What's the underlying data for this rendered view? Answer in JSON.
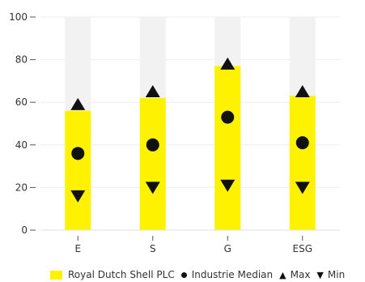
{
  "chart_data": {
    "type": "bar",
    "categories": [
      "E",
      "S",
      "G",
      "ESG"
    ],
    "ylim": [
      0,
      100
    ],
    "yticks": [
      0,
      20,
      40,
      60,
      80,
      100
    ],
    "grid": true,
    "legend_position": "bottom",
    "series": [
      {
        "name": "Royal Dutch Shell PLC",
        "kind": "bar",
        "values": [
          56,
          62,
          77,
          63
        ],
        "color": "#fff200"
      },
      {
        "name": "Industrie Median",
        "kind": "marker-circle",
        "values": [
          36,
          40,
          53,
          41
        ],
        "color": "#111111"
      },
      {
        "name": "Max",
        "kind": "marker-triangle-up",
        "values": [
          59,
          65,
          78,
          65
        ],
        "color": "#111111"
      },
      {
        "name": "Min",
        "kind": "marker-triangle-down",
        "values": [
          16,
          20,
          21,
          20
        ],
        "color": "#111111"
      }
    ],
    "background_bar_color": "#f2f2f2",
    "legend": {
      "bar_label": "Royal Dutch Shell PLC",
      "median_label": "Industrie Median",
      "max_label": "Max",
      "min_label": "Min",
      "max_glyph": "▲",
      "min_glyph": "▼"
    }
  }
}
